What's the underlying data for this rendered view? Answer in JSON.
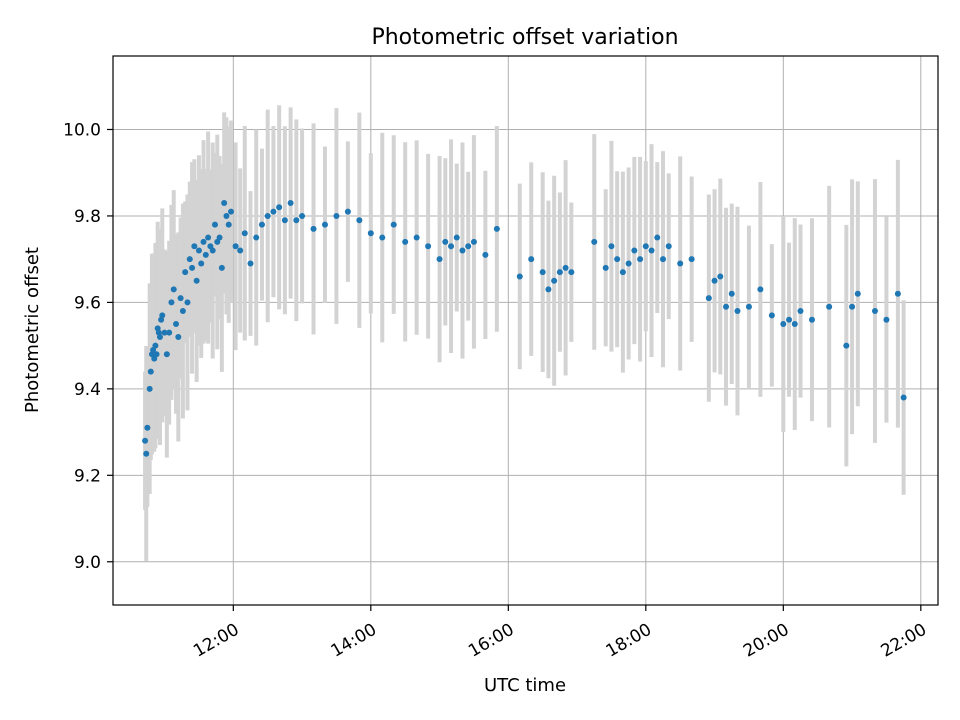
{
  "chart_data": {
    "type": "scatter",
    "title": "Photometric offset variation",
    "xlabel": "UTC time",
    "ylabel": "Photometric offset",
    "x_ticks": [
      "12:00",
      "14:00",
      "16:00",
      "18:00",
      "20:00",
      "22:00"
    ],
    "y_ticks": [
      "9.0",
      "9.2",
      "9.4",
      "9.6",
      "9.8",
      "10.0"
    ],
    "xlim": [
      "10:15",
      "22:15"
    ],
    "ylim": [
      8.9,
      10.17
    ],
    "grid": true,
    "colors": {
      "points": "#1f77b4",
      "error_bars": "#d3d3d3",
      "grid": "#b0b0b0"
    },
    "series": [
      {
        "x": [
          "10:43",
          "10:44",
          "10:45",
          "10:47",
          "10:48",
          "10:49",
          "10:50",
          "10:51",
          "10:52",
          "10:53",
          "10:54",
          "10:55",
          "10:56",
          "10:57",
          "10:58",
          "11:00",
          "11:02",
          "11:04",
          "11:06",
          "11:08",
          "11:10",
          "11:12",
          "11:14",
          "11:16",
          "11:18",
          "11:20",
          "11:22",
          "11:24",
          "11:26",
          "11:28",
          "11:30",
          "11:32",
          "11:34",
          "11:36",
          "11:38",
          "11:40",
          "11:42",
          "11:44",
          "11:46",
          "11:48",
          "11:50",
          "11:52",
          "11:54",
          "11:56",
          "11:58",
          "12:02",
          "12:06",
          "12:10",
          "12:15",
          "12:20",
          "12:25",
          "12:30",
          "12:35",
          "12:40",
          "12:45",
          "12:50",
          "12:55",
          "13:00",
          "13:10",
          "13:20",
          "13:30",
          "13:40",
          "13:50",
          "14:00",
          "14:10",
          "14:20",
          "14:30",
          "14:40",
          "14:50",
          "15:00",
          "15:05",
          "15:10",
          "15:15",
          "15:20",
          "15:25",
          "15:30",
          "15:40",
          "15:50",
          "16:10",
          "16:20",
          "16:30",
          "16:35",
          "16:40",
          "16:45",
          "16:50",
          "16:55",
          "17:15",
          "17:25",
          "17:30",
          "17:35",
          "17:40",
          "17:45",
          "17:50",
          "17:55",
          "18:00",
          "18:05",
          "18:10",
          "18:15",
          "18:20",
          "18:30",
          "18:40",
          "18:55",
          "19:00",
          "19:05",
          "19:10",
          "19:15",
          "19:20",
          "19:30",
          "19:40",
          "19:50",
          "20:00",
          "20:05",
          "20:10",
          "20:15",
          "20:25",
          "20:40",
          "20:55",
          "21:00",
          "21:05",
          "21:20",
          "21:30",
          "21:40",
          "21:45"
        ],
        "y": [
          9.28,
          9.25,
          9.31,
          9.4,
          9.44,
          9.48,
          9.49,
          9.47,
          9.5,
          9.48,
          9.54,
          9.53,
          9.52,
          9.56,
          9.57,
          9.53,
          9.48,
          9.53,
          9.6,
          9.63,
          9.55,
          9.52,
          9.61,
          9.58,
          9.67,
          9.6,
          9.7,
          9.68,
          9.73,
          9.65,
          9.72,
          9.69,
          9.74,
          9.71,
          9.75,
          9.73,
          9.72,
          9.78,
          9.74,
          9.75,
          9.68,
          9.83,
          9.8,
          9.78,
          9.81,
          9.73,
          9.72,
          9.76,
          9.69,
          9.75,
          9.78,
          9.8,
          9.81,
          9.82,
          9.79,
          9.83,
          9.79,
          9.8,
          9.77,
          9.78,
          9.8,
          9.81,
          9.79,
          9.76,
          9.75,
          9.78,
          9.74,
          9.75,
          9.73,
          9.7,
          9.74,
          9.73,
          9.75,
          9.72,
          9.73,
          9.74,
          9.71,
          9.77,
          9.66,
          9.7,
          9.67,
          9.63,
          9.65,
          9.67,
          9.68,
          9.67,
          9.74,
          9.68,
          9.73,
          9.7,
          9.67,
          9.69,
          9.72,
          9.7,
          9.73,
          9.72,
          9.75,
          9.7,
          9.73,
          9.69,
          9.7,
          9.61,
          9.65,
          9.66,
          9.59,
          9.62,
          9.58,
          9.59,
          9.63,
          9.57,
          9.55,
          9.56,
          9.55,
          9.58,
          9.56,
          9.59,
          9.5,
          9.59,
          9.62,
          9.58,
          9.56,
          9.62,
          9.38
        ]
      }
    ]
  }
}
